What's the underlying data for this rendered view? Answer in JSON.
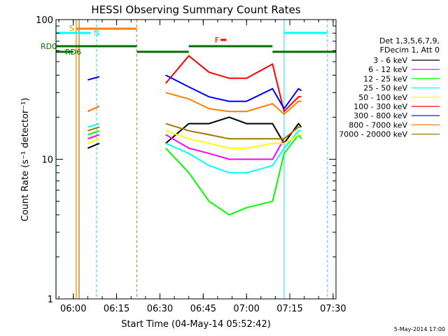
{
  "chart_data": {
    "type": "line",
    "title": "HESSI Observing Summary Count Rates",
    "xlabel": "Start Time (04-May-14 05:52:42)",
    "ylabel": "Count Rate (s⁻¹ detector⁻¹)",
    "ylim": [
      1,
      100
    ],
    "y_scale": "log",
    "xlim": [
      "05:54",
      "07:31"
    ],
    "x_ticks": [
      "06:00",
      "06:15",
      "06:30",
      "06:45",
      "07:00",
      "07:15",
      "07:30"
    ],
    "y_ticks": [
      "1",
      "10",
      "100"
    ],
    "x": [
      "06:01",
      "06:05",
      "06:09",
      "06:11",
      "06:32",
      "06:40",
      "06:47",
      "06:54",
      "07:00",
      "07:09",
      "07:13",
      "07:18",
      "07:19"
    ],
    "series": [
      {
        "name": "3 - 6 keV",
        "color": "#000000",
        "values": [
          null,
          12,
          13,
          null,
          13,
          18,
          18,
          20,
          18,
          18,
          13,
          18,
          17
        ]
      },
      {
        "name": "6 - 12 keV",
        "color": "#ff00ff",
        "values": [
          null,
          14,
          15,
          null,
          15,
          12,
          11,
          10,
          10,
          10,
          14,
          17,
          17
        ]
      },
      {
        "name": "12 - 25 keV",
        "color": "#00ff00",
        "values": [
          null,
          15,
          16,
          null,
          12,
          8,
          5,
          4,
          4.5,
          5,
          11,
          15,
          14
        ]
      },
      {
        "name": "25 - 50 keV",
        "color": "#00ffff",
        "values": [
          null,
          17,
          18,
          null,
          13,
          11,
          9,
          8,
          8,
          9,
          12,
          16,
          16
        ]
      },
      {
        "name": "50 - 100 keV",
        "color": "#ffff00",
        "values": [
          null,
          13,
          14,
          null,
          16,
          14,
          13,
          12,
          12,
          13,
          13,
          15,
          15
        ]
      },
      {
        "name": "100 - 300 keV",
        "color": "#ff0000",
        "values": [
          null,
          22,
          24,
          null,
          35,
          55,
          42,
          38,
          38,
          48,
          22,
          28,
          28
        ]
      },
      {
        "name": "300 - 800 keV",
        "color": "#0000ff",
        "values": [
          null,
          37,
          39,
          null,
          40,
          33,
          28,
          26,
          26,
          32,
          23,
          32,
          31
        ]
      },
      {
        "name": "800 - 7000 keV",
        "color": "#ff8000",
        "values": [
          null,
          22,
          24,
          null,
          30,
          27,
          23,
          22,
          22,
          25,
          21,
          26,
          26
        ]
      },
      {
        "name": "7000 - 20000 keV",
        "color": "#a07800",
        "values": [
          null,
          16,
          17,
          null,
          18,
          16,
          15,
          14,
          14,
          14,
          14,
          17,
          17
        ]
      }
    ],
    "legend_title_1": "Det 1,3,5,6,7,9,",
    "legend_title_2": "FDecim 1, Att 0",
    "legend_position": "right",
    "annotations": {
      "s_label": "S",
      "n_label": "N",
      "f_label": "F",
      "rd0_label": "RD0",
      "rd6_label": "RD6"
    },
    "footer_date": "5-May-2014 17:00"
  }
}
